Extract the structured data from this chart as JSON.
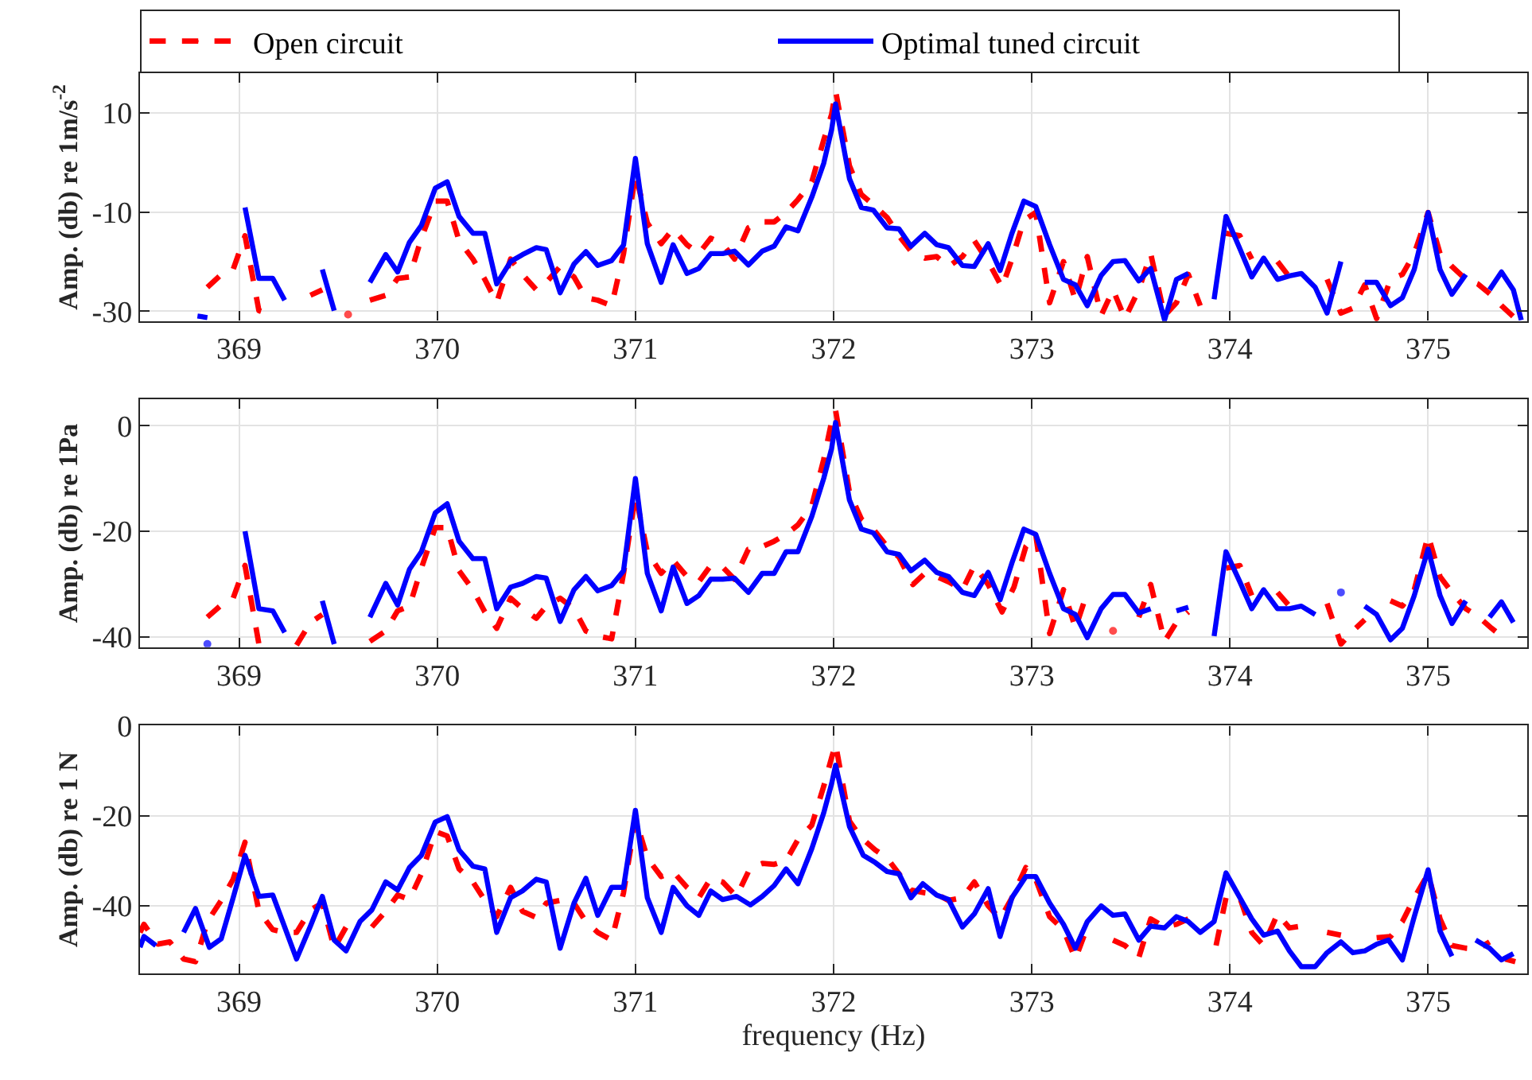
{
  "chart_data": [
    {
      "type": "line",
      "ylabel": "Amp. (db) re 1m/s$^{-2}$",
      "xlim": [
        368.5,
        375.5
      ],
      "xticks": [
        369,
        370,
        371,
        372,
        373,
        374,
        375
      ],
      "ylim": [
        -32,
        18
      ],
      "yticks": [
        -30,
        -10,
        10
      ],
      "grid": true,
      "legend": "top",
      "series": [
        {
          "name": "Open circuit",
          "color": "#ff0000",
          "line_style": "dashed",
          "x": [
            368.84,
            368.91,
            368.97,
            369.03,
            369.1,
            369.17,
            369.23,
            369.29,
            369.36,
            369.42,
            369.48,
            369.55,
            369.62,
            369.66,
            369.74,
            369.8,
            369.86,
            369.92,
            369.99,
            370.05,
            370.11,
            370.18,
            370.24,
            370.3,
            370.37,
            370.43,
            370.5,
            370.55,
            370.62,
            370.69,
            370.75,
            370.81,
            370.88,
            370.94,
            371.0,
            371.06,
            371.13,
            371.19,
            371.26,
            371.32,
            371.38,
            371.44,
            371.5,
            371.57,
            371.64,
            371.7,
            371.76,
            371.82,
            371.89,
            371.95,
            371.99,
            372.01,
            372.08,
            372.14,
            372.2,
            372.27,
            372.33,
            372.39,
            372.46,
            372.52,
            372.58,
            372.65,
            372.71,
            372.78,
            372.85,
            372.9,
            372.96,
            373.02,
            373.09,
            373.16,
            373.22,
            373.28,
            373.35,
            373.41,
            373.47,
            373.54,
            373.6,
            373.67,
            373.73,
            373.79,
            373.85,
            373.92,
            373.98,
            374.05,
            374.11,
            374.17,
            374.24,
            374.3,
            374.36,
            374.43,
            374.49,
            374.56,
            374.62,
            374.68,
            374.74,
            374.81,
            374.87,
            374.93,
            375.0,
            375.06,
            375.12,
            375.19,
            375.25,
            375.32,
            375.37,
            375.44
          ],
          "values": [
            -25.2,
            -22.6,
            -21.6,
            -14.8,
            -29.9,
            -30.9,
            null,
            null,
            -26.8,
            -25.7,
            null,
            -30.7,
            null,
            -27.8,
            -26.8,
            -23.4,
            -23.1,
            -15.3,
            -7.8,
            -7.8,
            -15.8,
            -19.5,
            -23.6,
            -28.3,
            -19.5,
            -22.6,
            -25.7,
            -24.2,
            -21,
            -23.1,
            -27.3,
            -27.8,
            -28.9,
            -18.4,
            -2.3,
            -12.2,
            -16.4,
            -13.4,
            -16.6,
            -18.4,
            -15.3,
            -16.4,
            -19.5,
            -13.2,
            -12,
            -12,
            -10.1,
            -7.5,
            -3.9,
            4.5,
            9.7,
            14.4,
            -0.7,
            -6.5,
            -8.5,
            -11.1,
            -14.8,
            -17.9,
            -19.3,
            -19,
            -21,
            -19,
            -15.8,
            -20,
            -25.2,
            -19.5,
            -11.7,
            -10.1,
            -28.3,
            -20,
            -27.8,
            -19,
            -30.9,
            -25.7,
            -31.5,
            -25.7,
            -18.4,
            -30.9,
            -28.3,
            -22.6,
            -28.9,
            null,
            -14.3,
            -14.8,
            -19.5,
            null,
            -20,
            -23.1,
            -23.6,
            null,
            -23.6,
            -30.4,
            -29.4,
            -24.7,
            -31.5,
            -23.6,
            -22.6,
            -18.4,
            -10.1,
            -18.4,
            -21,
            -23.6,
            -24.5,
            -26.8,
            -28.9,
            -31.5
          ]
        },
        {
          "name": "Optimal tuned circuit",
          "color": "#0000ff",
          "line_style": "solid",
          "x": [
            368.79,
            368.84,
            368.85,
            368.93,
            369.03,
            369.1,
            369.17,
            369.23,
            369.26,
            369.37,
            369.42,
            369.48,
            369.55,
            369.62,
            369.66,
            369.74,
            369.8,
            369.86,
            369.92,
            369.99,
            370.05,
            370.11,
            370.18,
            370.24,
            370.3,
            370.37,
            370.43,
            370.5,
            370.55,
            370.62,
            370.69,
            370.75,
            370.81,
            370.88,
            370.94,
            371.0,
            371.06,
            371.13,
            371.19,
            371.26,
            371.32,
            371.38,
            371.44,
            371.5,
            371.57,
            371.64,
            371.7,
            371.76,
            371.82,
            371.89,
            371.95,
            371.99,
            372.01,
            372.08,
            372.14,
            372.2,
            372.27,
            372.33,
            372.39,
            372.46,
            372.52,
            372.58,
            372.65,
            372.71,
            372.78,
            372.84,
            372.9,
            372.96,
            373.02,
            373.09,
            373.16,
            373.22,
            373.28,
            373.35,
            373.41,
            373.47,
            373.54,
            373.6,
            373.67,
            373.73,
            373.79,
            373.85,
            373.92,
            373.98,
            374.05,
            374.11,
            374.17,
            374.24,
            374.3,
            374.36,
            374.43,
            374.49,
            374.56,
            374.59,
            374.65,
            374.68,
            374.74,
            374.81,
            374.87,
            374.93,
            375.0,
            375.06,
            375.12,
            375.19,
            375.22,
            375.29,
            375.31,
            375.37,
            375.43,
            375.47
          ],
          "values": [
            -31,
            -31.3,
            null,
            null,
            -9.1,
            -23.4,
            -23.4,
            -27.8,
            null,
            null,
            -21.6,
            -29.9,
            null,
            null,
            -24.2,
            -18.6,
            -22.1,
            -16.1,
            -12.7,
            -5.2,
            -3.9,
            -10.9,
            -14.3,
            -14.3,
            -24.5,
            -20,
            -18.6,
            -17.2,
            -17.6,
            -26.3,
            -20.5,
            -18,
            -20.8,
            -19.8,
            -16.7,
            0.8,
            -16.4,
            -24.2,
            -16.6,
            -22.4,
            -21.4,
            -18.4,
            -18.4,
            -17.9,
            -20.7,
            -17.9,
            -16.9,
            -13,
            -13.8,
            -7,
            -0.2,
            6.6,
            11.8,
            -3.3,
            -9.1,
            -9.6,
            -13.2,
            -13.4,
            -16.9,
            -14.3,
            -16.6,
            -17.2,
            -20.8,
            -21,
            -16.4,
            -21.8,
            -14.3,
            -7.8,
            -8.9,
            -16.6,
            -23.6,
            -24.7,
            -28.9,
            -22.8,
            -20,
            -19.8,
            -23.9,
            -21.4,
            -31.8,
            -23.6,
            -22.4,
            null,
            -27.6,
            -10.9,
            -17.4,
            -23.1,
            -19.3,
            -23.6,
            -22.9,
            -22.4,
            -25.2,
            -30.4,
            -20,
            null,
            null,
            -24.2,
            -24.2,
            -28.9,
            -27.3,
            -21.6,
            -10.1,
            -21.6,
            -26.6,
            -22.6,
            null,
            null,
            -25.7,
            -22.1,
            -25.7,
            -31.8
          ]
        }
      ]
    },
    {
      "type": "line",
      "ylabel": "Amp. (db) re 1Pa",
      "xlim": [
        368.5,
        375.5
      ],
      "xticks": [
        369,
        370,
        371,
        372,
        373,
        374,
        375
      ],
      "ylim": [
        -42,
        5
      ],
      "yticks": [
        -40,
        -20,
        0
      ],
      "grid": true,
      "series": [
        {
          "color": "#ff0000",
          "line_style": "dashed",
          "x": [
            368.84,
            368.91,
            368.97,
            369.03,
            369.1,
            369.17,
            369.23,
            369.29,
            369.36,
            369.42,
            369.48,
            369.55,
            369.62,
            369.66,
            369.74,
            369.8,
            369.86,
            369.92,
            369.99,
            370.05,
            370.11,
            370.18,
            370.24,
            370.3,
            370.37,
            370.43,
            370.5,
            370.55,
            370.62,
            370.69,
            370.75,
            370.81,
            370.88,
            370.94,
            371.0,
            371.06,
            371.13,
            371.19,
            371.26,
            371.32,
            371.38,
            371.44,
            371.5,
            371.57,
            371.64,
            371.7,
            371.76,
            371.82,
            371.89,
            371.95,
            371.99,
            372.01,
            372.08,
            372.14,
            372.2,
            372.27,
            372.33,
            372.4,
            372.46,
            372.52,
            372.58,
            372.65,
            372.71,
            372.78,
            372.85,
            372.91,
            372.97,
            373.02,
            373.09,
            373.16,
            373.22,
            373.28,
            373.35,
            373.41,
            373.47,
            373.54,
            373.6,
            373.67,
            373.73,
            373.79,
            373.85,
            373.92,
            373.98,
            374.05,
            374.11,
            374.18,
            374.24,
            374.3,
            374.36,
            374.43,
            374.49,
            374.56,
            374.62,
            374.68,
            374.74,
            374.81,
            374.87,
            374.93,
            375.0,
            375.06,
            375.12,
            375.19,
            375.25,
            375.32,
            375.37
          ],
          "values": [
            -36.3,
            -34,
            -32.7,
            -26.5,
            -41.4,
            -41.4,
            null,
            -41.6,
            -37.3,
            -35.8,
            null,
            null,
            null,
            -40.9,
            -38.9,
            -35.1,
            -34.2,
            -27,
            -19.3,
            -19.3,
            -27.5,
            -31.1,
            -35.3,
            -38.4,
            -32.7,
            -34.7,
            -36.5,
            -34.2,
            -32.7,
            -34.7,
            -38.9,
            -39.9,
            -40.4,
            -28,
            -13.1,
            -23.9,
            -28,
            -25.5,
            -28.6,
            -29.6,
            -26.5,
            -26.8,
            -29.1,
            -23.4,
            -22.9,
            -21.9,
            -20.6,
            -18.8,
            -15.2,
            -6.4,
            0.8,
            2.9,
            -12.6,
            -17.7,
            -19.6,
            -22.9,
            -24.9,
            -30.1,
            -28,
            -28.6,
            -29.6,
            -31.1,
            -26.5,
            -30.1,
            -35.3,
            -30.6,
            -22.9,
            -20.6,
            -39.4,
            -31.1,
            -38.4,
            -31.6,
            null,
            -38.9,
            null,
            -36.3,
            -30.1,
            -40.9,
            -37.3,
            -35.3,
            null,
            null,
            -27,
            -26.5,
            -32.2,
            null,
            -31.6,
            -34.2,
            -34.2,
            null,
            -33.7,
            -41.4,
            -38.9,
            -36.8,
            null,
            -33.2,
            -34.2,
            -31.1,
            -20.8,
            -28.6,
            -31.6,
            -34.7,
            -36.1,
            -38.4,
            -39.9
          ]
        },
        {
          "color": "#0000ff",
          "line_style": "solid",
          "x": [
            368.84,
            368.95,
            369.03,
            369.1,
            369.17,
            369.23,
            369.26,
            369.39,
            369.42,
            369.48,
            369.53,
            369.62,
            369.66,
            369.74,
            369.8,
            369.86,
            369.92,
            369.99,
            370.05,
            370.11,
            370.18,
            370.24,
            370.3,
            370.37,
            370.43,
            370.5,
            370.55,
            370.62,
            370.69,
            370.75,
            370.81,
            370.88,
            370.94,
            371.0,
            371.06,
            371.13,
            371.19,
            371.26,
            371.32,
            371.38,
            371.44,
            371.5,
            371.57,
            371.64,
            371.7,
            371.76,
            371.82,
            371.89,
            371.95,
            371.99,
            372.01,
            372.08,
            372.14,
            372.2,
            372.27,
            372.33,
            372.39,
            372.46,
            372.52,
            372.58,
            372.65,
            372.71,
            372.78,
            372.84,
            372.9,
            372.96,
            373.02,
            373.09,
            373.16,
            373.22,
            373.28,
            373.35,
            373.41,
            373.47,
            373.54,
            373.6,
            373.67,
            373.73,
            373.79,
            373.85,
            373.92,
            373.98,
            374.05,
            374.11,
            374.17,
            374.24,
            374.3,
            374.36,
            374.43,
            374.49,
            374.56,
            374.58,
            374.65,
            374.68,
            374.74,
            374.81,
            374.87,
            374.93,
            375.0,
            375.06,
            375.12,
            375.19,
            375.21,
            375.29,
            375.31,
            375.37,
            375.43
          ],
          "values": [
            -41.4,
            null,
            -20,
            -34.7,
            -35.1,
            -39.2,
            null,
            null,
            -33.2,
            -41.4,
            null,
            null,
            -36.3,
            -29.9,
            -34,
            -27.2,
            -23.9,
            -16.5,
            -14.8,
            -21.9,
            -25.2,
            -25.2,
            -34.7,
            -30.6,
            -29.9,
            -28.6,
            -28.9,
            -37.1,
            -31.1,
            -28.6,
            -31.3,
            -30.3,
            -27.5,
            -10,
            -28,
            -35.1,
            -26.8,
            -33.7,
            -32.2,
            -29.1,
            -29.1,
            -28.9,
            -31.6,
            -28,
            -28,
            -23.9,
            -23.9,
            -17.2,
            -10,
            -4.3,
            0.6,
            -14.1,
            -19.6,
            -20.3,
            -23.9,
            -24.4,
            -27.5,
            -25.5,
            -27.8,
            -28.6,
            -31.6,
            -32.2,
            -27.8,
            -33,
            -26,
            -19.6,
            -20.6,
            -28,
            -34.7,
            -35.8,
            -40.2,
            -34.7,
            -32,
            -32,
            -35.5,
            -34.7,
            null,
            -35.1,
            -34.4,
            null,
            -39.9,
            -23.9,
            -29.6,
            -34.7,
            -31.1,
            -34.7,
            -34.7,
            -34.2,
            -35.8,
            null,
            -31.6,
            null,
            null,
            -34.2,
            -35.8,
            -40.6,
            -38.4,
            -32.2,
            -23.4,
            -32.2,
            -37.5,
            -33.2,
            null,
            null,
            -36.3,
            -33.4,
            -37.3
          ]
        }
      ]
    },
    {
      "type": "line",
      "ylabel": "Amp. (db) re 1 N",
      "xlabel": "frequency (Hz)",
      "xlim": [
        368.5,
        375.5
      ],
      "xticks": [
        369,
        370,
        371,
        372,
        373,
        374,
        375
      ],
      "ylim": [
        -55,
        0
      ],
      "yticks": [
        -40,
        -20,
        0
      ],
      "grid": true,
      "series": [
        {
          "color": "#ff0000",
          "line_style": "dashed",
          "x": [
            368.5,
            368.52,
            368.59,
            368.65,
            368.72,
            368.78,
            368.84,
            368.91,
            368.97,
            369.03,
            369.1,
            369.17,
            369.23,
            369.29,
            369.36,
            369.42,
            369.48,
            369.54,
            369.61,
            369.65,
            369.67,
            369.74,
            369.8,
            369.86,
            369.92,
            369.99,
            370.05,
            370.11,
            370.18,
            370.24,
            370.3,
            370.37,
            370.43,
            370.5,
            370.55,
            370.62,
            370.69,
            370.75,
            370.81,
            370.88,
            370.94,
            371.0,
            371.06,
            371.13,
            371.19,
            371.26,
            371.32,
            371.38,
            371.44,
            371.51,
            371.58,
            371.64,
            371.7,
            371.76,
            371.82,
            371.89,
            371.95,
            371.99,
            372.01,
            372.08,
            372.14,
            372.21,
            372.27,
            372.33,
            372.39,
            372.46,
            372.52,
            372.58,
            372.65,
            372.71,
            372.78,
            372.84,
            372.9,
            372.97,
            373.02,
            373.09,
            373.16,
            373.22,
            373.28,
            373.35,
            373.41,
            373.47,
            373.54,
            373.6,
            373.67,
            373.73,
            373.79,
            373.86,
            373.93,
            373.98,
            374.05,
            374.11,
            374.17,
            374.24,
            374.3,
            374.36,
            374.43,
            374.49,
            374.56,
            374.59,
            374.71,
            374.74,
            374.81,
            374.87,
            374.93,
            375.0,
            375.06,
            375.12,
            375.19,
            375.25,
            375.31,
            375.35,
            375.39,
            375.44
          ],
          "values": [
            -45.9,
            -44.1,
            -48.5,
            -48,
            -51.8,
            -52.4,
            -43.5,
            -38.8,
            -34.1,
            -25.9,
            -41.2,
            -45.3,
            -45.9,
            -45.9,
            -40.9,
            -39.4,
            -49.4,
            -44.7,
            null,
            null,
            -44.7,
            -41.2,
            -37.6,
            -38.6,
            -32.9,
            -23.5,
            -24.5,
            -31.8,
            -34.7,
            -38.8,
            -42.4,
            -35.9,
            -41.2,
            -42.6,
            -39.4,
            -38.8,
            -39.4,
            -43.5,
            -45.9,
            -47.6,
            -37.1,
            -20.6,
            -29.4,
            -33.5,
            -32.4,
            -35.9,
            -38.2,
            -33.9,
            -34.7,
            -37.9,
            -31.5,
            -30.6,
            -30.8,
            -30,
            -25.3,
            -22.1,
            -13.5,
            -7.1,
            -4.1,
            -21.2,
            -24.9,
            -27.6,
            -29.4,
            -32.9,
            -36.5,
            -37.1,
            -37.4,
            -38.8,
            -38.2,
            -34.7,
            -40,
            -42.9,
            -38.2,
            -31.5,
            -34.1,
            -42.4,
            -45.3,
            -51.8,
            -44.7,
            null,
            -47.6,
            -48.8,
            -51.5,
            -42.9,
            -44.7,
            -44.1,
            -42.9,
            null,
            -48.8,
            -38.2,
            -38.2,
            -45.9,
            -48.8,
            -41.8,
            -44.9,
            -44.5,
            null,
            -45.9,
            -46.5,
            null,
            null,
            -47.1,
            -46.8,
            -43.5,
            -38.2,
            -32.9,
            -42.9,
            -48.8,
            -49.4,
            -49.6,
            -48,
            null,
            -51.8,
            -52.4
          ]
        },
        {
          "color": "#0000ff",
          "line_style": "solid",
          "x": [
            368.5,
            368.52,
            368.58,
            368.63,
            368.67,
            368.72,
            368.78,
            368.85,
            368.91,
            368.97,
            369.03,
            369.1,
            369.17,
            369.23,
            369.29,
            369.36,
            369.42,
            369.48,
            369.54,
            369.61,
            369.67,
            369.74,
            369.8,
            369.86,
            369.92,
            369.99,
            370.05,
            370.11,
            370.18,
            370.24,
            370.3,
            370.37,
            370.43,
            370.5,
            370.55,
            370.62,
            370.69,
            370.75,
            370.81,
            370.88,
            370.94,
            371.0,
            371.06,
            371.13,
            371.19,
            371.26,
            371.32,
            371.38,
            371.44,
            371.51,
            371.58,
            371.64,
            371.7,
            371.76,
            371.82,
            371.89,
            371.95,
            371.99,
            372.01,
            372.08,
            372.15,
            372.21,
            372.27,
            372.33,
            372.39,
            372.45,
            372.52,
            372.58,
            372.65,
            372.71,
            372.78,
            372.84,
            372.9,
            372.97,
            373.02,
            373.09,
            373.16,
            373.22,
            373.28,
            373.35,
            373.41,
            373.47,
            373.54,
            373.6,
            373.67,
            373.73,
            373.79,
            373.85,
            373.92,
            373.98,
            374.05,
            374.11,
            374.17,
            374.24,
            374.3,
            374.36,
            374.43,
            374.49,
            374.56,
            374.62,
            374.68,
            374.74,
            374.8,
            374.87,
            374.93,
            375.0,
            375.06,
            375.12,
            375.16,
            375.2,
            375.24,
            375.31,
            375.37,
            375.43
          ],
          "values": [
            -49.2,
            -46.8,
            -48.8,
            null,
            null,
            -45.9,
            -40.6,
            -49.2,
            -47.3,
            -38.2,
            -28.8,
            -37.9,
            -37.6,
            -44.7,
            -51.8,
            -44.5,
            -37.9,
            -47.6,
            -50,
            -43.5,
            -40.9,
            -34.7,
            -36.5,
            -31.5,
            -28.8,
            -21.4,
            -20.2,
            -27.6,
            -31.2,
            -31.8,
            -45.9,
            -38.2,
            -36.7,
            -34.1,
            -34.7,
            -49.4,
            -39.4,
            -33.9,
            -42.1,
            -35.9,
            -35.9,
            -18.8,
            -38.2,
            -45.9,
            -35.9,
            -40,
            -42.1,
            -36.7,
            -38.6,
            -37.9,
            -39.8,
            -37.9,
            -35.5,
            -31.8,
            -35.1,
            -27.3,
            -19.4,
            -12.9,
            -8.8,
            -22.4,
            -28.8,
            -30.4,
            -32.4,
            -32.9,
            -38.2,
            -35.1,
            -37.6,
            -38.6,
            -44.7,
            -41.8,
            -36.2,
            -46.8,
            -38.2,
            -33.5,
            -33.5,
            -39.4,
            -44.1,
            -49.4,
            -43.5,
            -40,
            -42.1,
            -41.8,
            -47.6,
            -44.5,
            -44.9,
            -42.4,
            -43.5,
            -45.9,
            -43.5,
            -32.7,
            -38.2,
            -42.9,
            -46.5,
            -45.6,
            -50,
            -53.5,
            -53.5,
            -50.4,
            -48,
            -50.4,
            -50,
            -48.5,
            -47.6,
            -52,
            -42.4,
            -32,
            -45.6,
            -51.2,
            null,
            null,
            -47.6,
            -49.4,
            -52,
            -50.6
          ]
        }
      ]
    }
  ]
}
